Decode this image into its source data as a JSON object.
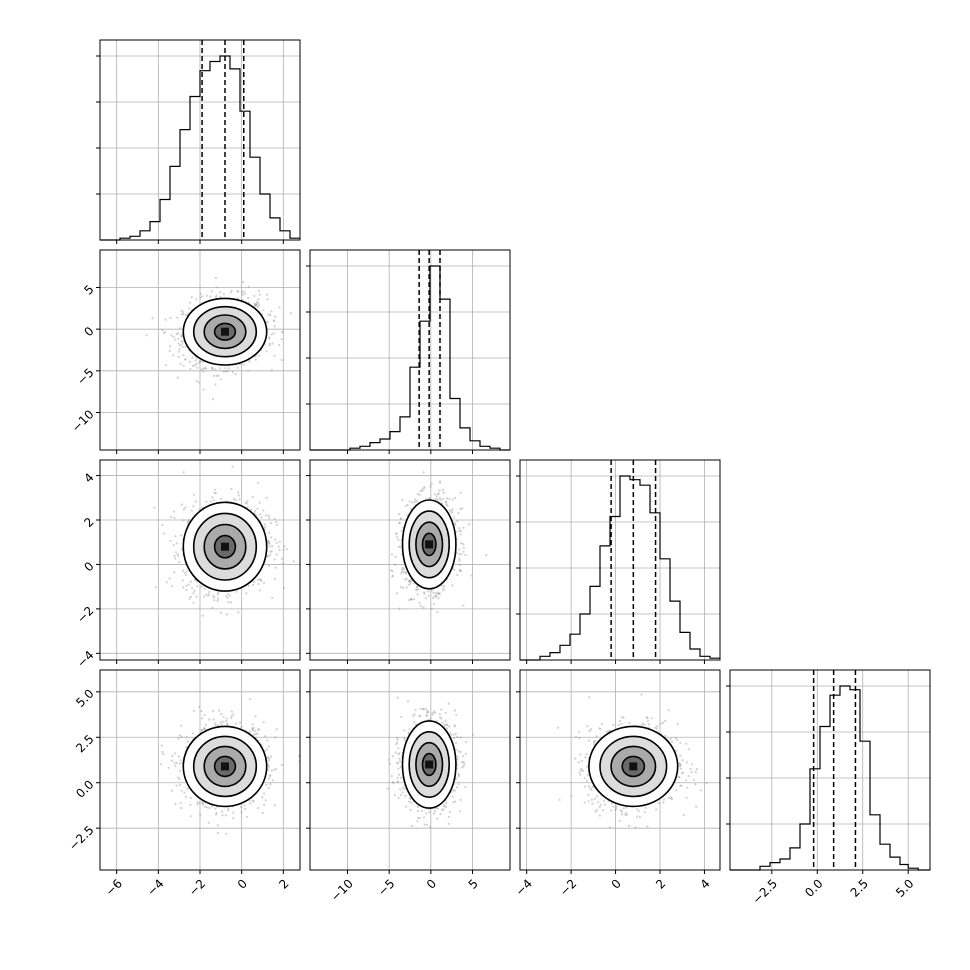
{
  "chart_data": {
    "type": "corner",
    "n_params": 4,
    "grid": true,
    "quantile_lines": "dashed",
    "colors": {
      "hist": "#000000",
      "contour": "#000000",
      "points": "#9a9a9a",
      "grid": "#b0b0b0",
      "frame": "#000000"
    },
    "params": [
      {
        "range": [
          -6.8,
          2.8
        ],
        "ticks": [
          -6,
          -4,
          -2,
          0,
          2
        ],
        "tick_labels": [
          "−6",
          "−4",
          "−2",
          "0",
          "2"
        ],
        "quantiles": [
          -1.9,
          -0.8,
          0.1
        ],
        "hist_edges": [
          -6.8,
          -6.32,
          -5.84,
          -5.36,
          -4.88,
          -4.4,
          -3.92,
          -3.44,
          -2.96,
          -2.48,
          -2.0,
          -1.52,
          -1.04,
          -0.56,
          -0.08,
          0.4,
          0.88,
          1.36,
          1.84,
          2.32,
          2.8
        ],
        "hist_counts": [
          0,
          0,
          1,
          2,
          5,
          10,
          22,
          40,
          60,
          78,
          92,
          97,
          100,
          93,
          70,
          45,
          25,
          12,
          5,
          1
        ]
      },
      {
        "range": [
          -14.5,
          9.5
        ],
        "ticks": [
          -10,
          -5,
          0,
          5
        ],
        "tick_labels": [
          "−10",
          "−5",
          "0",
          "5"
        ],
        "quantiles": [
          -1.4,
          -0.2,
          1.1
        ],
        "hist_edges": [
          -14.5,
          -13.3,
          -12.1,
          -10.9,
          -9.7,
          -8.5,
          -7.3,
          -6.1,
          -4.9,
          -3.7,
          -2.5,
          -1.3,
          -0.1,
          1.1,
          2.3,
          3.5,
          4.7,
          5.9,
          7.1,
          8.3,
          9.5
        ],
        "hist_counts": [
          0,
          0,
          0,
          0,
          1,
          2,
          4,
          6,
          10,
          18,
          45,
          70,
          100,
          82,
          28,
          12,
          5,
          2,
          1,
          0
        ]
      },
      {
        "range": [
          -4.3,
          4.7
        ],
        "ticks": [
          -4,
          -2,
          0,
          2,
          4
        ],
        "tick_labels": [
          "−4",
          "−2",
          "0",
          "2",
          "4"
        ],
        "quantiles": [
          -0.2,
          0.8,
          1.8
        ],
        "hist_edges": [
          -4.3,
          -3.85,
          -3.4,
          -2.95,
          -2.5,
          -2.05,
          -1.6,
          -1.15,
          -0.7,
          -0.25,
          0.2,
          0.65,
          1.1,
          1.55,
          2.0,
          2.45,
          2.9,
          3.35,
          3.8,
          4.25,
          4.7
        ],
        "hist_counts": [
          0,
          0,
          2,
          4,
          8,
          14,
          25,
          40,
          62,
          78,
          100,
          98,
          95,
          80,
          55,
          32,
          15,
          6,
          2,
          1
        ]
      },
      {
        "range": [
          -4.8,
          6.2
        ],
        "ticks": [
          -2.5,
          0.0,
          2.5,
          5.0
        ],
        "tick_labels": [
          "−2.5",
          "0.0",
          "2.5",
          "5.0"
        ],
        "quantiles": [
          -0.2,
          0.9,
          2.1
        ],
        "hist_edges": [
          -4.8,
          -4.25,
          -3.7,
          -3.15,
          -2.6,
          -2.05,
          -1.5,
          -0.95,
          -0.4,
          0.15,
          0.7,
          1.25,
          1.8,
          2.35,
          2.9,
          3.45,
          4.0,
          4.55,
          5.0,
          5.55,
          6.2
        ],
        "hist_counts": [
          0,
          0,
          0,
          2,
          4,
          6,
          12,
          25,
          55,
          78,
          95,
          100,
          98,
          70,
          30,
          14,
          7,
          3,
          1,
          0
        ]
      }
    ],
    "pairs": [
      {
        "row": 1,
        "col": 0,
        "mean": [
          -0.8,
          -0.3
        ],
        "sd": [
          1.0,
          2.0
        ],
        "corr": 0.1
      },
      {
        "row": 2,
        "col": 0,
        "mean": [
          -0.8,
          0.8
        ],
        "sd": [
          1.0,
          1.0
        ],
        "corr": 0.1
      },
      {
        "row": 2,
        "col": 1,
        "mean": [
          -0.2,
          0.9
        ],
        "sd": [
          1.6,
          1.0
        ],
        "corr": 0.1
      },
      {
        "row": 3,
        "col": 0,
        "mean": [
          -0.8,
          0.9
        ],
        "sd": [
          1.0,
          1.1
        ],
        "corr": 0.05
      },
      {
        "row": 3,
        "col": 1,
        "mean": [
          -0.2,
          1.0
        ],
        "sd": [
          1.6,
          1.2
        ],
        "corr": 0.05
      },
      {
        "row": 3,
        "col": 2,
        "mean": [
          0.8,
          0.9
        ],
        "sd": [
          1.0,
          1.1
        ],
        "corr": 0.05
      }
    ]
  }
}
